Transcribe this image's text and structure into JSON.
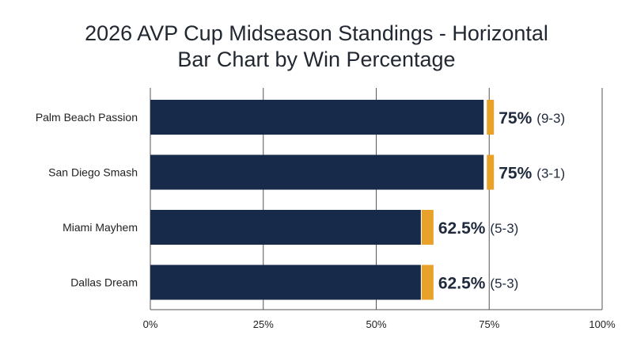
{
  "chart_data": {
    "type": "bar",
    "orientation": "horizontal",
    "title_line1": "2026 AVP Cup Midseason Standings - Horizontal",
    "title_line2": "Bar Chart by Win Percentage",
    "categories": [
      "Palm Beach Passion",
      "San Diego Smash",
      "Miami Mayhem",
      "Dallas Dream"
    ],
    "values": [
      75,
      75,
      62.5,
      62.5
    ],
    "value_labels": [
      "75%",
      "75%",
      "62.5%",
      "62.5%"
    ],
    "records": [
      "(9-3)",
      "(3-1)",
      "(5-3)",
      "(5-3)"
    ],
    "xlim": [
      0,
      100
    ],
    "xticks": [
      0,
      25,
      50,
      75,
      100
    ],
    "xtick_labels": [
      "0%",
      "25%",
      "50%",
      "75%",
      "100%"
    ],
    "grid": true,
    "colors": {
      "bar": "#182a4a",
      "accent": "#e8a22a",
      "grid": "#555555",
      "text": "#1f2a3c"
    }
  }
}
